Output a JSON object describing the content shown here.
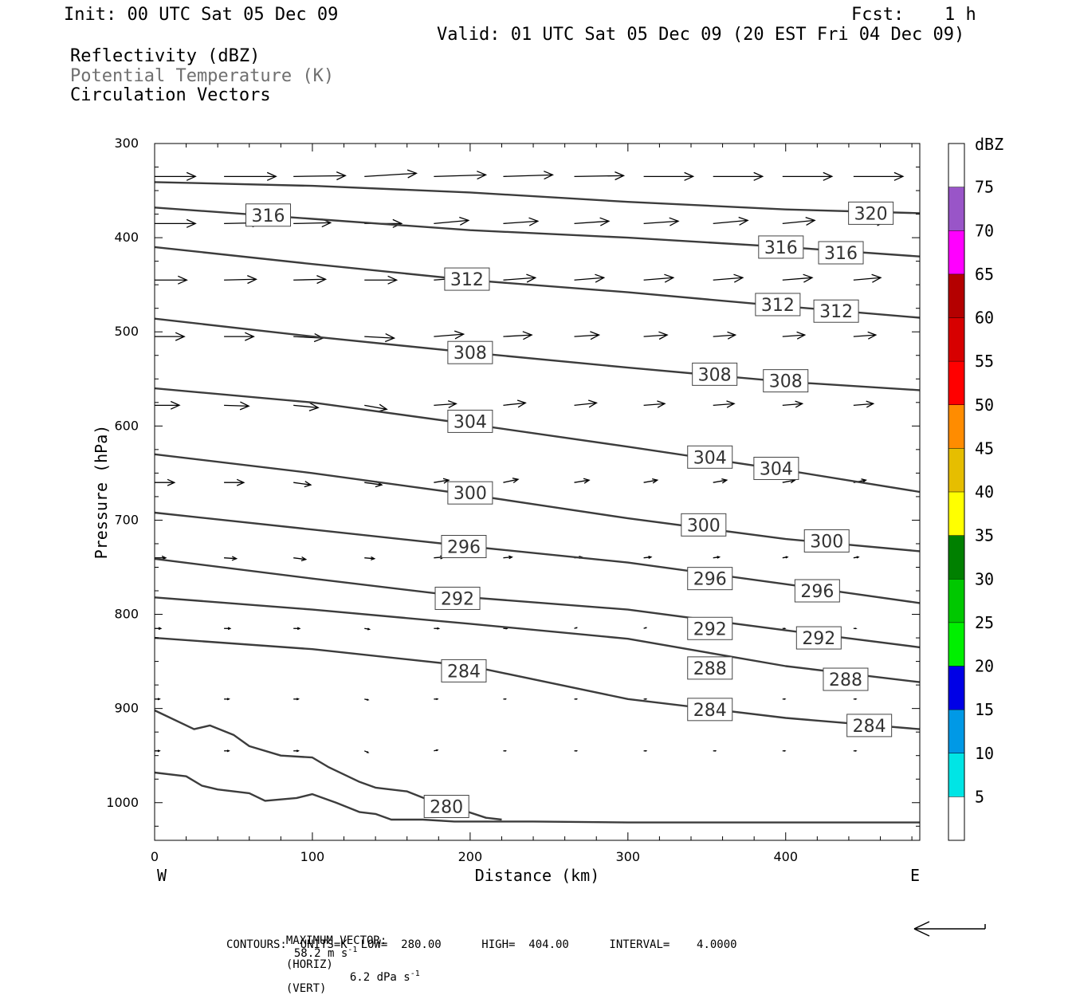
{
  "header": {
    "init": "Init: 00 UTC Sat 05 Dec 09",
    "fcst_label": "Fcst:",
    "fcst_value": "1 h",
    "valid": "Valid: 01 UTC Sat 05 Dec 09 (20 EST Fri 04 Dec 09)"
  },
  "titles": {
    "line1": "Reflectivity (dBZ)",
    "line2": "Potential Temperature (K)",
    "line3": "Circulation Vectors"
  },
  "footer": {
    "max_vector_label": "MAXIMUM VECTOR:",
    "max_vector_horiz": "58.2 m s",
    "horiz_exp": "-1",
    "horiz_tag": "(HORIZ)",
    "max_vector_vert": "6.2 dPa s",
    "vert_exp": "-1",
    "vert_tag": "(VERT)",
    "contours_line": "CONTOURS:  UNITS=K  LOW=  280.00      HIGH=  404.00      INTERVAL=    4.0000"
  },
  "chart_data": {
    "type": "cross-section",
    "xlabel": "Distance (km)",
    "ylabel": "Pressure (hPa)",
    "xlim": [
      0,
      485
    ],
    "ylim": [
      1040,
      300
    ],
    "x_ticks": [
      0,
      100,
      200,
      300,
      400
    ],
    "y_ticks": [
      300,
      400,
      500,
      600,
      700,
      800,
      900,
      1000
    ],
    "x_end_labels": {
      "left": "W",
      "right": "E"
    },
    "colorbar": {
      "unit": "dBZ",
      "levels": [
        5,
        10,
        15,
        20,
        25,
        30,
        35,
        40,
        45,
        50,
        55,
        60,
        65,
        70,
        75
      ],
      "colors": [
        "#00e5e5",
        "#0099e6",
        "#0000e6",
        "#00f000",
        "#00c800",
        "#008000",
        "#ffff00",
        "#e6be00",
        "#ff8c00",
        "#ff0000",
        "#d70000",
        "#b40000",
        "#ff00ff",
        "#9955c8"
      ]
    },
    "theta_contours": [
      {
        "value": 320,
        "points": [
          [
            0,
            341
          ],
          [
            100,
            345
          ],
          [
            200,
            352
          ],
          [
            300,
            362
          ],
          [
            400,
            370
          ],
          [
            485,
            374
          ]
        ],
        "labels": [
          [
            454,
            374
          ]
        ]
      },
      {
        "value": 316,
        "points": [
          [
            0,
            368
          ],
          [
            100,
            380
          ],
          [
            200,
            392
          ],
          [
            300,
            400
          ],
          [
            400,
            410
          ],
          [
            485,
            420
          ]
        ],
        "labels": [
          [
            72,
            376
          ],
          [
            397,
            410
          ],
          [
            435,
            416
          ]
        ]
      },
      {
        "value": 312,
        "points": [
          [
            0,
            410
          ],
          [
            100,
            428
          ],
          [
            200,
            445
          ],
          [
            300,
            458
          ],
          [
            400,
            473
          ],
          [
            485,
            485
          ]
        ],
        "labels": [
          [
            198,
            444
          ],
          [
            395,
            471
          ],
          [
            432,
            478
          ]
        ]
      },
      {
        "value": 308,
        "points": [
          [
            0,
            486
          ],
          [
            100,
            505
          ],
          [
            200,
            522
          ],
          [
            300,
            538
          ],
          [
            400,
            553
          ],
          [
            485,
            562
          ]
        ],
        "labels": [
          [
            200,
            522
          ],
          [
            355,
            545
          ],
          [
            400,
            552
          ]
        ]
      },
      {
        "value": 304,
        "points": [
          [
            0,
            560
          ],
          [
            100,
            575
          ],
          [
            200,
            598
          ],
          [
            300,
            622
          ],
          [
            400,
            647
          ],
          [
            485,
            670
          ]
        ],
        "labels": [
          [
            200,
            595
          ],
          [
            352,
            633
          ],
          [
            394,
            645
          ]
        ]
      },
      {
        "value": 300,
        "points": [
          [
            0,
            630
          ],
          [
            100,
            650
          ],
          [
            200,
            673
          ],
          [
            300,
            698
          ],
          [
            400,
            720
          ],
          [
            485,
            733
          ]
        ],
        "labels": [
          [
            200,
            671
          ],
          [
            348,
            705
          ],
          [
            426,
            722
          ]
        ]
      },
      {
        "value": 296,
        "points": [
          [
            0,
            692
          ],
          [
            100,
            710
          ],
          [
            200,
            728
          ],
          [
            300,
            745
          ],
          [
            400,
            768
          ],
          [
            485,
            788
          ]
        ],
        "labels": [
          [
            196,
            728
          ],
          [
            352,
            762
          ],
          [
            420,
            775
          ]
        ]
      },
      {
        "value": 292,
        "points": [
          [
            0,
            741
          ],
          [
            100,
            762
          ],
          [
            200,
            782
          ],
          [
            300,
            795
          ],
          [
            400,
            817
          ],
          [
            485,
            835
          ]
        ],
        "labels": [
          [
            192,
            783
          ],
          [
            352,
            815
          ],
          [
            421,
            825
          ]
        ]
      },
      {
        "value": 288,
        "points": [
          [
            0,
            782
          ],
          [
            100,
            795
          ],
          [
            200,
            810
          ],
          [
            300,
            826
          ],
          [
            400,
            855
          ],
          [
            485,
            872
          ]
        ],
        "labels": [
          [
            352,
            857
          ],
          [
            438,
            869
          ]
        ]
      },
      {
        "value": 284,
        "points": [
          [
            0,
            825
          ],
          [
            100,
            837
          ],
          [
            200,
            855
          ],
          [
            300,
            890
          ],
          [
            400,
            910
          ],
          [
            485,
            922
          ]
        ],
        "labels": [
          [
            196,
            860
          ],
          [
            352,
            901
          ],
          [
            453,
            918
          ]
        ]
      },
      {
        "value": 280,
        "points": [
          [
            0,
            902
          ],
          [
            25,
            922
          ],
          [
            35,
            918
          ],
          [
            50,
            928
          ],
          [
            60,
            940
          ],
          [
            80,
            950
          ],
          [
            100,
            952
          ],
          [
            110,
            962
          ],
          [
            130,
            978
          ],
          [
            140,
            984
          ],
          [
            160,
            988
          ],
          [
            175,
            998
          ],
          [
            190,
            1005
          ],
          [
            210,
            1016
          ],
          [
            220,
            1018
          ]
        ],
        "labels": [
          [
            185,
            1004
          ]
        ]
      },
      {
        "value": 280,
        "points": [
          [
            0,
            968
          ],
          [
            20,
            972
          ],
          [
            30,
            982
          ],
          [
            40,
            986
          ],
          [
            60,
            990
          ],
          [
            70,
            998
          ],
          [
            90,
            995
          ],
          [
            100,
            991
          ],
          [
            115,
            1000
          ],
          [
            130,
            1010
          ],
          [
            140,
            1012
          ],
          [
            150,
            1018
          ],
          [
            170,
            1018
          ],
          [
            190,
            1020
          ],
          [
            240,
            1020
          ],
          [
            300,
            1021
          ],
          [
            485,
            1021
          ]
        ],
        "labels": []
      }
    ],
    "circulation_vectors": {
      "columns_km": [
        0,
        44,
        88,
        133,
        177,
        221,
        266,
        310,
        354,
        398,
        443
      ],
      "rows": [
        {
          "p": 335,
          "v": [
            [
              33,
              0
            ],
            [
              42,
              0
            ],
            [
              42,
              -1
            ],
            [
              42,
              -4
            ],
            [
              42,
              -2
            ],
            [
              40,
              -2
            ],
            [
              40,
              -1
            ],
            [
              40,
              0
            ],
            [
              40,
              0
            ],
            [
              40,
              0
            ],
            [
              40,
              0
            ]
          ]
        },
        {
          "p": 385,
          "v": [
            [
              33,
              0
            ],
            [
              30,
              -1
            ],
            [
              30,
              -1
            ],
            [
              30,
              0
            ],
            [
              28,
              -4
            ],
            [
              28,
              -3
            ],
            [
              28,
              -3
            ],
            [
              28,
              -3
            ],
            [
              28,
              -4
            ],
            [
              26,
              -4
            ],
            [
              26,
              -3
            ]
          ]
        },
        {
          "p": 445,
          "v": [
            [
              26,
              0
            ],
            [
              26,
              -1
            ],
            [
              26,
              -1
            ],
            [
              26,
              0
            ],
            [
              26,
              -3
            ],
            [
              26,
              -3
            ],
            [
              24,
              -3
            ],
            [
              24,
              -3
            ],
            [
              24,
              -3
            ],
            [
              24,
              -3
            ],
            [
              22,
              -3
            ]
          ]
        },
        {
          "p": 505,
          "v": [
            [
              24,
              0
            ],
            [
              24,
              0
            ],
            [
              24,
              2
            ],
            [
              24,
              2
            ],
            [
              24,
              -3
            ],
            [
              23,
              -2
            ],
            [
              20,
              -2
            ],
            [
              19,
              -2
            ],
            [
              18,
              -2
            ],
            [
              18,
              -2
            ],
            [
              18,
              -2
            ]
          ]
        },
        {
          "p": 578,
          "v": [
            [
              20,
              0
            ],
            [
              20,
              1
            ],
            [
              20,
              3
            ],
            [
              18,
              5
            ],
            [
              18,
              -2
            ],
            [
              18,
              -3
            ],
            [
              18,
              -3
            ],
            [
              17,
              -2
            ],
            [
              17,
              -2
            ],
            [
              16,
              -2
            ],
            [
              16,
              -2
            ]
          ]
        },
        {
          "p": 660,
          "v": [
            [
              16,
              0
            ],
            [
              16,
              0
            ],
            [
              14,
              3
            ],
            [
              14,
              3
            ],
            [
              12,
              -3
            ],
            [
              12,
              -4
            ],
            [
              12,
              -3
            ],
            [
              11,
              -3
            ],
            [
              11,
              -3
            ],
            [
              10,
              -3
            ],
            [
              10,
              -3
            ]
          ]
        },
        {
          "p": 740,
          "v": [
            [
              9,
              0
            ],
            [
              10,
              1
            ],
            [
              10,
              2
            ],
            [
              8,
              1
            ],
            [
              8,
              -1
            ],
            [
              7,
              -1
            ],
            [
              6,
              -1
            ],
            [
              6,
              -1
            ],
            [
              5,
              -1
            ],
            [
              4,
              -1
            ],
            [
              4,
              -1
            ]
          ]
        },
        {
          "p": 815,
          "v": [
            [
              5,
              0
            ],
            [
              5,
              0
            ],
            [
              5,
              0
            ],
            [
              4,
              1
            ],
            [
              4,
              0
            ],
            [
              3,
              0
            ],
            [
              2,
              -1
            ],
            [
              2,
              -1
            ],
            [
              2,
              0
            ],
            [
              2,
              0
            ],
            [
              2,
              0
            ]
          ]
        },
        {
          "p": 890,
          "v": [
            [
              4,
              0
            ],
            [
              4,
              0
            ],
            [
              4,
              0
            ],
            [
              3,
              1
            ],
            [
              3,
              0
            ],
            [
              2,
              0
            ],
            [
              2,
              0
            ],
            [
              2,
              0
            ],
            [
              2,
              0
            ],
            [
              2,
              0
            ],
            [
              2,
              0
            ]
          ]
        },
        {
          "p": 945,
          "v": [
            [
              4,
              0
            ],
            [
              4,
              0
            ],
            [
              4,
              0
            ],
            [
              3,
              2
            ],
            [
              3,
              -1
            ],
            [
              2,
              0
            ],
            [
              2,
              0
            ],
            [
              2,
              0
            ],
            [
              2,
              0
            ],
            [
              2,
              0
            ],
            [
              2,
              0
            ]
          ]
        }
      ]
    }
  }
}
